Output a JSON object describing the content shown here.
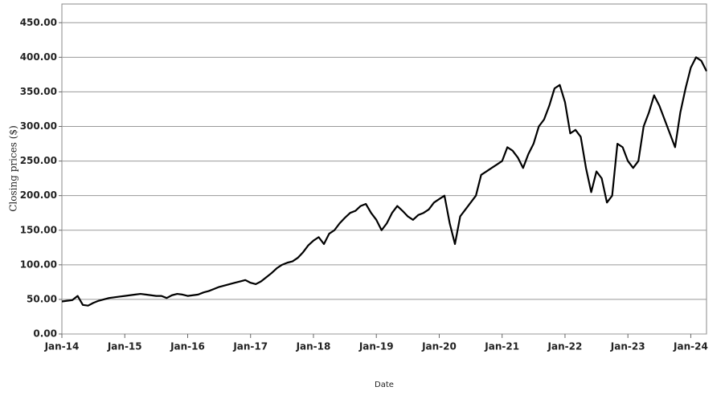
{
  "chart_data": {
    "type": "line",
    "y_label": "Closing prices ($)",
    "x_label": "Date",
    "x": [
      "2014-01",
      "2014-02",
      "2014-03",
      "2014-04",
      "2014-05",
      "2014-06",
      "2014-07",
      "2014-08",
      "2014-09",
      "2014-10",
      "2014-11",
      "2014-12",
      "2015-01",
      "2015-02",
      "2015-03",
      "2015-04",
      "2015-05",
      "2015-06",
      "2015-07",
      "2015-08",
      "2015-09",
      "2015-10",
      "2015-11",
      "2015-12",
      "2016-01",
      "2016-02",
      "2016-03",
      "2016-04",
      "2016-05",
      "2016-06",
      "2016-07",
      "2016-08",
      "2016-09",
      "2016-10",
      "2016-11",
      "2016-12",
      "2017-01",
      "2017-02",
      "2017-03",
      "2017-04",
      "2017-05",
      "2017-06",
      "2017-07",
      "2017-08",
      "2017-09",
      "2017-10",
      "2017-11",
      "2017-12",
      "2018-01",
      "2018-02",
      "2018-03",
      "2018-04",
      "2018-05",
      "2018-06",
      "2018-07",
      "2018-08",
      "2018-09",
      "2018-10",
      "2018-11",
      "2018-12",
      "2019-01",
      "2019-02",
      "2019-03",
      "2019-04",
      "2019-05",
      "2019-06",
      "2019-07",
      "2019-08",
      "2019-09",
      "2019-10",
      "2019-11",
      "2019-12",
      "2020-01",
      "2020-02",
      "2020-03",
      "2020-04",
      "2020-05",
      "2020-06",
      "2020-07",
      "2020-08",
      "2020-09",
      "2020-10",
      "2020-11",
      "2020-12",
      "2021-01",
      "2021-02",
      "2021-03",
      "2021-04",
      "2021-05",
      "2021-06",
      "2021-07",
      "2021-08",
      "2021-09",
      "2021-10",
      "2021-11",
      "2021-12",
      "2022-01",
      "2022-02",
      "2022-03",
      "2022-04",
      "2022-05",
      "2022-06",
      "2022-07",
      "2022-08",
      "2022-09",
      "2022-10",
      "2022-11",
      "2022-12",
      "2023-01",
      "2023-02",
      "2023-03",
      "2023-04",
      "2023-05",
      "2023-06",
      "2023-07",
      "2023-08",
      "2023-09",
      "2023-10",
      "2023-11",
      "2023-12",
      "2024-01",
      "2024-02",
      "2024-03",
      "2024-04"
    ],
    "values": [
      47,
      48,
      49,
      55,
      42,
      41,
      45,
      48,
      50,
      52,
      53,
      54,
      55,
      56,
      57,
      58,
      57,
      56,
      55,
      55,
      52,
      56,
      58,
      57,
      55,
      56,
      57,
      60,
      62,
      65,
      68,
      70,
      72,
      74,
      76,
      78,
      74,
      72,
      76,
      82,
      88,
      95,
      100,
      103,
      105,
      110,
      118,
      128,
      135,
      140,
      130,
      145,
      150,
      160,
      168,
      175,
      178,
      185,
      188,
      175,
      165,
      150,
      160,
      175,
      185,
      178,
      170,
      165,
      172,
      175,
      180,
      190,
      195,
      200,
      160,
      130,
      170,
      180,
      190,
      200,
      230,
      235,
      240,
      245,
      250,
      270,
      265,
      255,
      240,
      260,
      275,
      300,
      310,
      330,
      355,
      360,
      335,
      290,
      295,
      285,
      240,
      205,
      235,
      225,
      190,
      200,
      275,
      270,
      250,
      240,
      250,
      300,
      320,
      345,
      330,
      310,
      290,
      270,
      320,
      355,
      385,
      400,
      395,
      380
    ],
    "color": "#000000",
    "xlim": [
      "2014-01",
      "2024-04"
    ],
    "xticks": [
      {
        "value": "2014-01",
        "label": "Jan-14"
      },
      {
        "value": "2015-01",
        "label": "Jan-15"
      },
      {
        "value": "2016-01",
        "label": "Jan-16"
      },
      {
        "value": "2017-01",
        "label": "Jan-17"
      },
      {
        "value": "2018-01",
        "label": "Jan-18"
      },
      {
        "value": "2019-01",
        "label": "Jan-19"
      },
      {
        "value": "2020-01",
        "label": "Jan-20"
      },
      {
        "value": "2021-01",
        "label": "Jan-21"
      },
      {
        "value": "2022-01",
        "label": "Jan-22"
      },
      {
        "value": "2023-01",
        "label": "Jan-23"
      },
      {
        "value": "2024-01",
        "label": "Jan-24"
      }
    ],
    "ylim": [
      0,
      477
    ],
    "yticks": [
      {
        "value": 0,
        "label": "0.00"
      },
      {
        "value": 50,
        "label": "50.00"
      },
      {
        "value": 100,
        "label": "100.00"
      },
      {
        "value": 150,
        "label": "150.00"
      },
      {
        "value": 200,
        "label": "200.00"
      },
      {
        "value": 250,
        "label": "250.00"
      },
      {
        "value": 300,
        "label": "300.00"
      },
      {
        "value": 350,
        "label": "350.00"
      },
      {
        "value": 400,
        "label": "400.00"
      },
      {
        "value": 450,
        "label": "450.00"
      }
    ],
    "grid": true
  }
}
